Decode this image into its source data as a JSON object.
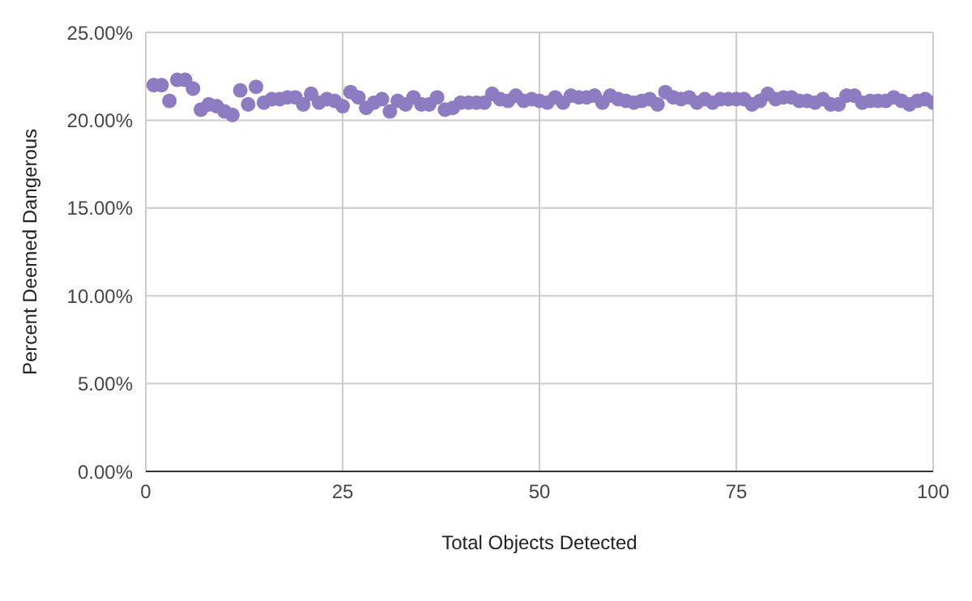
{
  "chart_data": {
    "type": "scatter",
    "xlabel": "Total Objects Detected",
    "ylabel": "Percent Deemed Dangerous",
    "x": [
      1,
      2,
      3,
      4,
      5,
      6,
      7,
      8,
      9,
      10,
      11,
      12,
      13,
      14,
      15,
      16,
      17,
      18,
      19,
      20,
      21,
      22,
      23,
      24,
      25,
      26,
      27,
      28,
      29,
      30,
      31,
      32,
      33,
      34,
      35,
      36,
      37,
      38,
      39,
      40,
      41,
      42,
      43,
      44,
      45,
      46,
      47,
      48,
      49,
      50,
      51,
      52,
      53,
      54,
      55,
      56,
      57,
      58,
      59,
      60,
      61,
      62,
      63,
      64,
      65,
      66,
      67,
      68,
      69,
      70,
      71,
      72,
      73,
      74,
      75,
      76,
      77,
      78,
      79,
      80,
      81,
      82,
      83,
      84,
      85,
      86,
      87,
      88,
      89,
      90,
      91,
      92,
      93,
      94,
      95,
      96,
      97,
      98,
      99,
      100
    ],
    "series": [
      {
        "color": "#8e7cc3",
        "values": [
          22.0,
          22.0,
          21.1,
          22.3,
          22.3,
          21.8,
          20.6,
          20.9,
          20.8,
          20.5,
          20.3,
          21.7,
          20.9,
          21.9,
          21.0,
          21.2,
          21.2,
          21.3,
          21.3,
          20.9,
          21.5,
          21.0,
          21.2,
          21.1,
          20.8,
          21.6,
          21.3,
          20.7,
          21.0,
          21.2,
          20.5,
          21.1,
          20.9,
          21.3,
          20.9,
          20.9,
          21.3,
          20.6,
          20.7,
          21.0,
          21.0,
          21.0,
          21.0,
          21.5,
          21.2,
          21.1,
          21.4,
          21.1,
          21.2,
          21.1,
          21.0,
          21.3,
          21.0,
          21.4,
          21.3,
          21.3,
          21.4,
          21.0,
          21.4,
          21.2,
          21.1,
          21.0,
          21.1,
          21.2,
          20.9,
          21.6,
          21.3,
          21.2,
          21.3,
          21.0,
          21.2,
          21.0,
          21.2,
          21.2,
          21.2,
          21.2,
          20.9,
          21.1,
          21.5,
          21.2,
          21.3,
          21.3,
          21.1,
          21.1,
          21.0,
          21.2,
          20.9,
          20.9,
          21.4,
          21.4,
          21.0,
          21.1,
          21.1,
          21.1,
          21.3,
          21.1,
          20.9,
          21.1,
          21.2,
          21.0
        ]
      }
    ],
    "xlim": [
      0,
      100
    ],
    "xticks": [
      0,
      25,
      50,
      75,
      100
    ],
    "ylim": [
      0,
      25
    ],
    "yticks": [
      {
        "value": 0,
        "label": "0.00%"
      },
      {
        "value": 5,
        "label": "5.00%"
      },
      {
        "value": 10,
        "label": "10.00%"
      },
      {
        "value": 15,
        "label": "15.00%"
      },
      {
        "value": 20,
        "label": "20.00%"
      },
      {
        "value": 25,
        "label": "25.00%"
      }
    ],
    "grid": true,
    "marker": "circle"
  }
}
